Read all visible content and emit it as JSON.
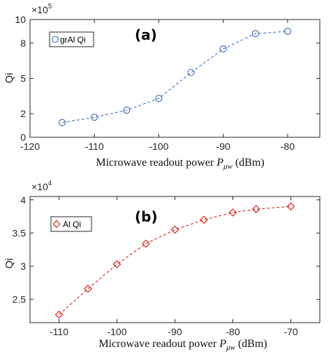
{
  "chart_data": [
    {
      "type": "line",
      "panel_label": "(a)",
      "x": [
        -115,
        -110,
        -105,
        -100,
        -95,
        -90,
        -85,
        -80
      ],
      "series": [
        {
          "name": "grAl Qi",
          "values": [
            125000,
            170000,
            230000,
            330000,
            550000,
            750000,
            880000,
            900000
          ],
          "color": "#3f74c0",
          "marker": "circle",
          "line_style": "dashed"
        }
      ],
      "xlim": [
        -120,
        -75
      ],
      "ylim": [
        0,
        1000000
      ],
      "xticks": [
        -120,
        -110,
        -100,
        -90,
        -80
      ],
      "xtick_labels": [
        "-120",
        "-110",
        "-100",
        "-90",
        "-80"
      ],
      "yticks": [
        0,
        200000,
        500000,
        800000,
        1000000
      ],
      "ytick_labels": [
        "0",
        "2",
        "5",
        "8",
        "10"
      ],
      "y_exponent": "5",
      "y_exponent_base": "×10",
      "ylabel": "Qi",
      "xlabel_main": "Microwave readout power ",
      "xlabel_symbol": "P",
      "xlabel_subscript": "μw",
      "xlabel_unit": " (dBm)",
      "legend_position": "top-left",
      "grid": false
    },
    {
      "type": "line",
      "panel_label": "(b)",
      "x": [
        -110,
        -105,
        -100,
        -95,
        -90,
        -85,
        -80,
        -76,
        -70
      ],
      "series": [
        {
          "name": "Al Qi",
          "values": [
            22700,
            26600,
            30300,
            33400,
            35500,
            37000,
            38100,
            38600,
            39000
          ],
          "color": "#d7261e",
          "marker": "diamond",
          "line_style": "dashed"
        }
      ],
      "xlim": [
        -115,
        -65
      ],
      "ylim": [
        21500,
        40500
      ],
      "xticks": [
        -110,
        -100,
        -90,
        -80,
        -70
      ],
      "xtick_labels": [
        "-110",
        "-100",
        "-90",
        "-80",
        "-70"
      ],
      "yticks": [
        25000,
        30000,
        35000,
        40000
      ],
      "ytick_labels": [
        "2.5",
        "3",
        "3.5",
        "4"
      ],
      "y_exponent": "4",
      "y_exponent_base": "×10",
      "ylabel": "Qi",
      "xlabel_main": "Microwave readout power ",
      "xlabel_symbol": "P",
      "xlabel_subscript": "μw",
      "xlabel_unit": " (dBm)",
      "legend_position": "top-left",
      "grid": false
    }
  ]
}
